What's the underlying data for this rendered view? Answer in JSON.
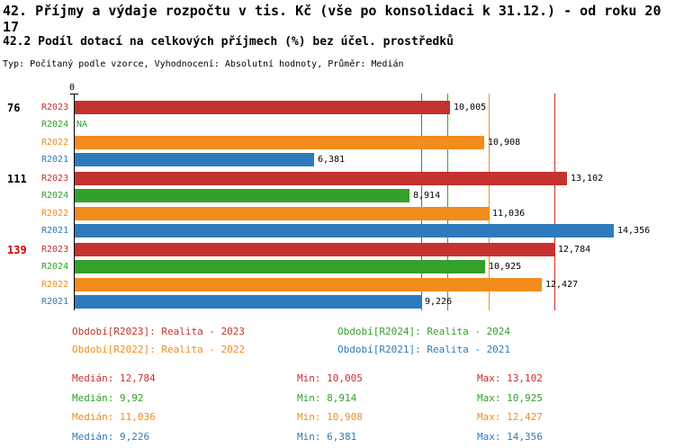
{
  "chart_data": {
    "type": "bar",
    "orientation": "horizontal",
    "title": "42. Příjmy a výdaje rozpočtu v tis. Kč (vše po konsolidaci k 31.12.) - od roku 2017",
    "subtitle": "42.2 Podíl dotací na celkových příjmech (%) bez účel. prostředků",
    "meta": "Typ: Počítaný podle vzorce, Vyhodnocení: Absolutní hodnoty, Průměr: Medián",
    "axis": {
      "origin_label": "0",
      "max_value": 14356
    },
    "series_colors": {
      "R2023": "#c5312e",
      "R2024": "#33a02c",
      "R2022": "#f28c1d",
      "R2021": "#2d7bbc"
    },
    "groups": [
      {
        "label": "76",
        "label_color": "#000000",
        "bars": [
          {
            "series": "R2023",
            "value": 10005,
            "display": "10,005"
          },
          {
            "series": "R2024",
            "value": null,
            "display": "NA"
          },
          {
            "series": "R2022",
            "value": 10908,
            "display": "10,908"
          },
          {
            "series": "R2021",
            "value": 6381,
            "display": "6,381"
          }
        ]
      },
      {
        "label": "111",
        "label_color": "#000000",
        "bars": [
          {
            "series": "R2023",
            "value": 13102,
            "display": "13,102"
          },
          {
            "series": "R2024",
            "value": 8914,
            "display": "8,914"
          },
          {
            "series": "R2022",
            "value": 11036,
            "display": "11,036"
          },
          {
            "series": "R2021",
            "value": 14356,
            "display": "14,356"
          }
        ]
      },
      {
        "label": "139",
        "label_color": "#cc0000",
        "bars": [
          {
            "series": "R2023",
            "value": 12784,
            "display": "12,784"
          },
          {
            "series": "R2024",
            "value": 10925,
            "display": "10,925"
          },
          {
            "series": "R2022",
            "value": 12427,
            "display": "12,427"
          },
          {
            "series": "R2021",
            "value": 9226,
            "display": "9,226"
          }
        ]
      }
    ],
    "median_lines": [
      {
        "series": "R2021",
        "value": 9226
      },
      {
        "series": "R2024",
        "value": 9920
      },
      {
        "series": "R2022",
        "value": 11036
      },
      {
        "series": "R2023",
        "value": 12784
      }
    ],
    "legend": [
      {
        "series": "R2023",
        "label": "Období[R2023]: Realita - 2023"
      },
      {
        "series": "R2024",
        "label": "Období[R2024]: Realita - 2024"
      },
      {
        "series": "R2022",
        "label": "Období[R2022]: Realita - 2022"
      },
      {
        "series": "R2021",
        "label": "Období[R2021]: Realita - 2021"
      }
    ],
    "stats": [
      {
        "series": "R2023",
        "median": "Medián: 12,784",
        "min": "Min: 10,005",
        "max": "Max: 13,102"
      },
      {
        "series": "R2024",
        "median": "Medián: 9,92",
        "min": "Min: 8,914",
        "max": "Max: 10,925"
      },
      {
        "series": "R2022",
        "median": "Medián: 11,036",
        "min": "Min: 10,908",
        "max": "Max: 12,427"
      },
      {
        "series": "R2021",
        "median": "Medián: 9,226",
        "min": "Min: 6,381",
        "max": "Max: 14,356"
      }
    ]
  }
}
